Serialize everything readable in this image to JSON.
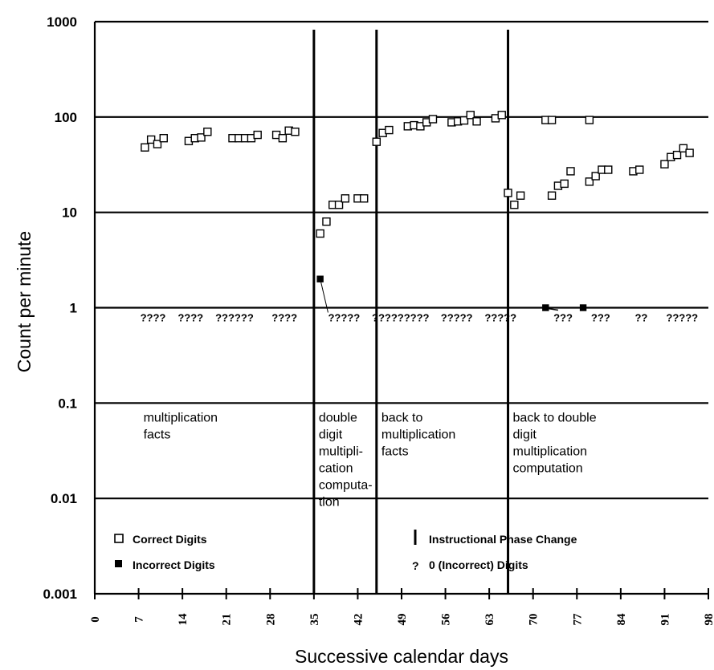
{
  "chart_data": {
    "type": "scatter",
    "xlabel": "Successive calendar days",
    "ylabel": "Count per minute",
    "xlim": [
      0,
      98
    ],
    "ylim": [
      0.001,
      1000
    ],
    "y_scale": "log",
    "x_ticks": [
      "0",
      "7",
      "14",
      "21",
      "28",
      "35",
      "42",
      "49",
      "56",
      "63",
      "70",
      "77",
      "84",
      "91",
      "98"
    ],
    "y_ticks": [
      "1000",
      "100",
      "10",
      "1",
      "0.1",
      "0.01",
      "0.001"
    ],
    "grid": "horizontal",
    "phase_changes": [
      35,
      45,
      66
    ],
    "phase_labels": [
      {
        "x": 7,
        "lines": [
          "multiplication",
          "facts"
        ]
      },
      {
        "x": 35,
        "lines": [
          "double",
          "digit",
          "multipli-",
          "cation",
          "computa-",
          "tion"
        ]
      },
      {
        "x": 45,
        "lines": [
          "back to",
          "multiplication",
          "facts"
        ]
      },
      {
        "x": 66,
        "lines": [
          "back to double",
          "digit",
          "multiplication",
          "computation"
        ]
      }
    ],
    "zero_marker_text": "?",
    "zero_markers": [
      {
        "x": 7,
        "text": "????"
      },
      {
        "x": 13,
        "text": "????"
      },
      {
        "x": 19,
        "text": "??????"
      },
      {
        "x": 28,
        "text": "????"
      },
      {
        "x": 37,
        "text": "?????"
      },
      {
        "x": 44,
        "text": "?????????"
      },
      {
        "x": 55,
        "text": "?????"
      },
      {
        "x": 62,
        "text": "?????"
      },
      {
        "x": 73,
        "text": "???"
      },
      {
        "x": 79,
        "text": "???"
      },
      {
        "x": 86,
        "text": "??"
      },
      {
        "x": 91,
        "text": "?????"
      }
    ],
    "series": [
      {
        "name": "Correct Digits",
        "marker": "open-square",
        "points": [
          [
            8,
            48
          ],
          [
            9,
            58
          ],
          [
            10,
            52
          ],
          [
            11,
            60
          ],
          [
            15,
            56
          ],
          [
            16,
            60
          ],
          [
            17,
            61
          ],
          [
            18,
            70
          ],
          [
            22,
            60
          ],
          [
            23,
            60
          ],
          [
            24,
            60
          ],
          [
            25,
            60
          ],
          [
            26,
            65
          ],
          [
            29,
            65
          ],
          [
            30,
            60
          ],
          [
            31,
            72
          ],
          [
            32,
            70
          ],
          [
            36,
            6
          ],
          [
            37,
            8
          ],
          [
            38,
            12
          ],
          [
            39,
            12
          ],
          [
            40,
            14
          ],
          [
            42,
            14
          ],
          [
            43,
            14
          ],
          [
            45,
            55
          ],
          [
            46,
            68
          ],
          [
            47,
            73
          ],
          [
            50,
            80
          ],
          [
            51,
            82
          ],
          [
            52,
            80
          ],
          [
            53,
            88
          ],
          [
            54,
            95
          ],
          [
            57,
            88
          ],
          [
            58,
            90
          ],
          [
            59,
            92
          ],
          [
            60,
            105
          ],
          [
            61,
            90
          ],
          [
            64,
            97
          ],
          [
            65,
            105
          ],
          [
            66,
            16
          ],
          [
            67,
            12
          ],
          [
            68,
            15
          ],
          [
            73,
            15
          ],
          [
            74,
            19
          ],
          [
            75,
            20
          ],
          [
            76,
            27
          ],
          [
            72,
            93
          ],
          [
            73,
            93
          ],
          [
            79,
            93
          ],
          [
            79,
            21
          ],
          [
            80,
            24
          ],
          [
            81,
            28
          ],
          [
            82,
            28
          ],
          [
            86,
            27
          ],
          [
            87,
            28
          ],
          [
            91,
            32
          ],
          [
            92,
            38
          ],
          [
            93,
            40
          ],
          [
            94,
            47
          ],
          [
            95,
            42
          ]
        ]
      },
      {
        "name": "Incorrect Digits",
        "marker": "filled-square",
        "points": [
          [
            36,
            2
          ],
          [
            72,
            1
          ],
          [
            78,
            1
          ]
        ]
      }
    ],
    "legend": [
      {
        "marker": "open-square",
        "label": "Correct Digits"
      },
      {
        "marker": "filled-square",
        "label": "Incorrect Digits"
      },
      {
        "marker": "phase-line",
        "label": "Instructional Phase Change"
      },
      {
        "marker": "question",
        "label": "0 (Incorrect) Digits"
      }
    ]
  }
}
